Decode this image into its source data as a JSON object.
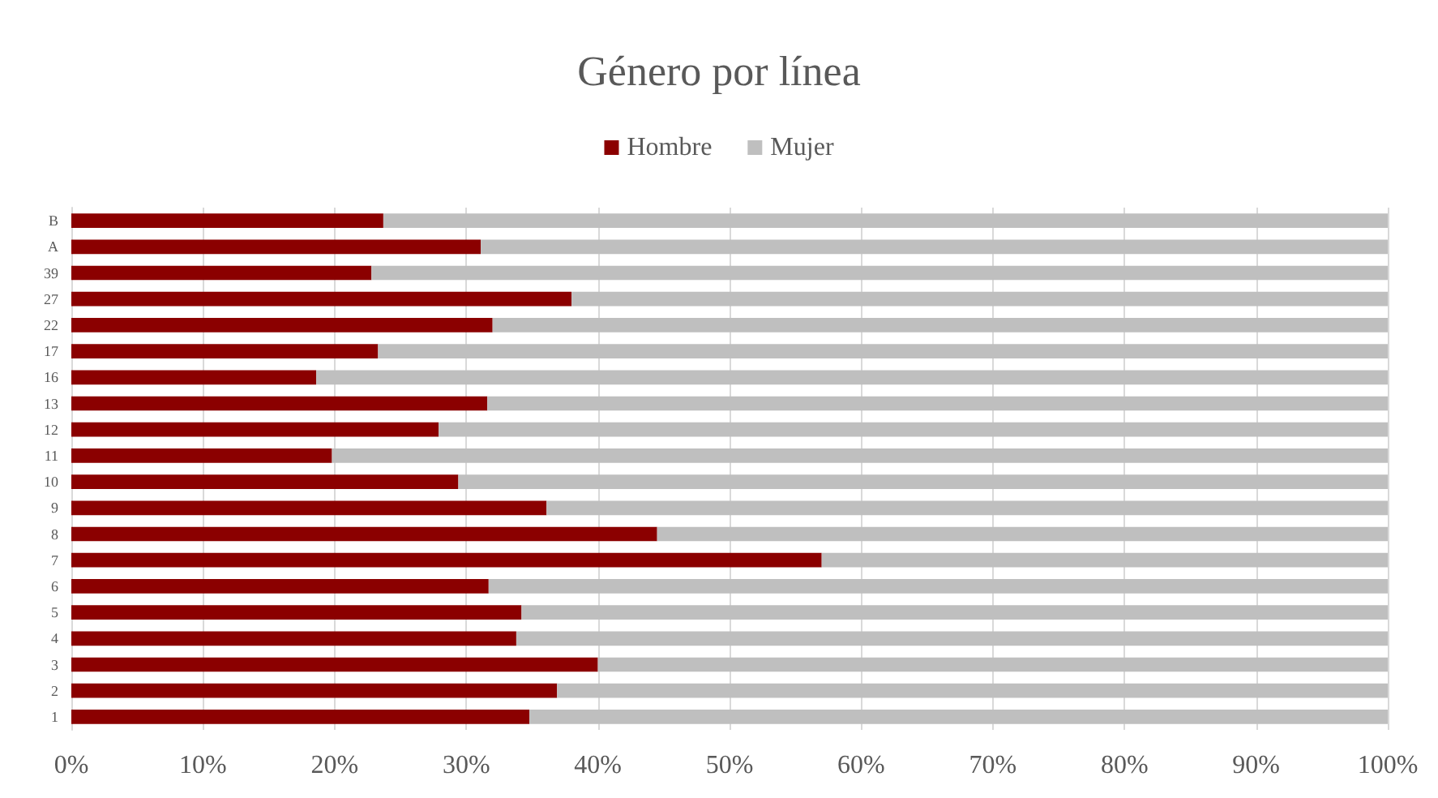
{
  "chart_data": {
    "type": "bar",
    "title": "Género por línea",
    "orientation": "horizontal",
    "stacked": true,
    "categories": [
      "B",
      "A",
      "39",
      "27",
      "22",
      "17",
      "16",
      "13",
      "12",
      "11",
      "10",
      "9",
      "8",
      "7",
      "6",
      "5",
      "4",
      "3",
      "2",
      "1"
    ],
    "series": [
      {
        "name": "Hombre",
        "color": "#8b0000",
        "values": [
          23.7,
          31.1,
          22.8,
          38.0,
          32.0,
          23.3,
          18.6,
          31.6,
          27.9,
          19.8,
          29.4,
          36.1,
          44.5,
          57.0,
          31.7,
          34.2,
          33.8,
          40.0,
          36.9,
          34.8
        ]
      },
      {
        "name": "Mujer",
        "color": "#bfbfbf",
        "values": [
          76.3,
          68.9,
          77.2,
          62.0,
          68.0,
          76.7,
          81.4,
          68.4,
          72.1,
          80.2,
          70.6,
          63.9,
          55.5,
          43.0,
          68.3,
          65.8,
          66.2,
          60.0,
          63.1,
          65.2
        ]
      }
    ],
    "xlim": [
      0,
      100
    ],
    "xticks": [
      {
        "value": 0,
        "label": "0%"
      },
      {
        "value": 10,
        "label": "10%"
      },
      {
        "value": 20,
        "label": "20%"
      },
      {
        "value": 30,
        "label": "30%"
      },
      {
        "value": 40,
        "label": "40%"
      },
      {
        "value": 50,
        "label": "50%"
      },
      {
        "value": 60,
        "label": "60%"
      },
      {
        "value": 70,
        "label": "70%"
      },
      {
        "value": 80,
        "label": "80%"
      },
      {
        "value": 90,
        "label": "90%"
      },
      {
        "value": 100,
        "label": "100%"
      }
    ],
    "grid": "x",
    "legend": "top"
  }
}
